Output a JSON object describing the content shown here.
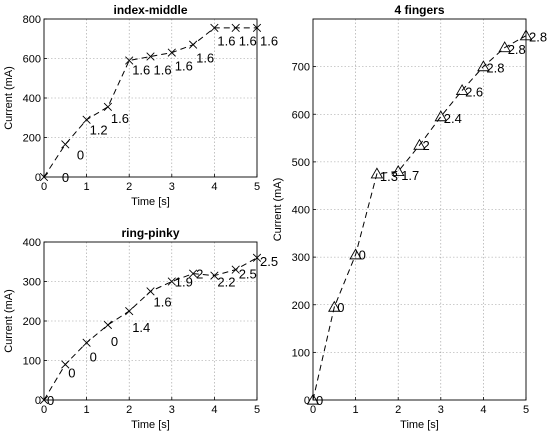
{
  "chart_data": [
    {
      "type": "line",
      "title": "index-middle",
      "xlabel": "Time [s]",
      "ylabel": "Current (mA)",
      "xlim": [
        0,
        5
      ],
      "ylim": [
        0,
        800
      ],
      "xticks": [
        "0",
        "1",
        "2",
        "3",
        "4",
        "5"
      ],
      "yticks": [
        "0",
        "200",
        "400",
        "600",
        "800"
      ],
      "grid": true,
      "marker": "x",
      "x": [
        0,
        0.5,
        1,
        1.5,
        2,
        2.5,
        3,
        3.5,
        4,
        4.5,
        5
      ],
      "y": [
        0,
        165,
        290,
        355,
        590,
        610,
        630,
        670,
        755,
        755,
        755
      ],
      "annotations": [
        {
          "text": "0",
          "x": 0.35,
          "y": 0
        },
        {
          "text": "0",
          "x": 0.7,
          "y": 115
        },
        {
          "text": "1.2",
          "x": 1.0,
          "y": 240
        },
        {
          "text": "1.6",
          "x": 1.5,
          "y": 300
        },
        {
          "text": "1.6",
          "x": 2.0,
          "y": 545
        },
        {
          "text": "1.6",
          "x": 2.5,
          "y": 545
        },
        {
          "text": "1.6",
          "x": 3.0,
          "y": 565
        },
        {
          "text": "1.6",
          "x": 3.5,
          "y": 605
        },
        {
          "text": "1.6",
          "x": 4.0,
          "y": 690
        },
        {
          "text": "1.6",
          "x": 4.5,
          "y": 690
        },
        {
          "text": "1.6",
          "x": 5.0,
          "y": 690
        }
      ]
    },
    {
      "type": "line",
      "title": "ring-pinky",
      "xlabel": "Time [s]",
      "ylabel": "Current (mA)",
      "xlim": [
        0,
        5
      ],
      "ylim": [
        0,
        400
      ],
      "xticks": [
        "0",
        "1",
        "2",
        "3",
        "4",
        "5"
      ],
      "yticks": [
        "0",
        "100",
        "200",
        "300",
        "400"
      ],
      "grid": true,
      "marker": "x",
      "x": [
        0,
        0.5,
        1,
        1.5,
        2,
        2.5,
        3,
        3.5,
        4,
        4.5,
        5
      ],
      "y": [
        0,
        90,
        145,
        190,
        225,
        275,
        300,
        320,
        315,
        330,
        360
      ],
      "annotations": [
        {
          "text": "0",
          "x": 0.0,
          "y": 0
        },
        {
          "text": "0",
          "x": 0.5,
          "y": 70
        },
        {
          "text": "0",
          "x": 1.0,
          "y": 110
        },
        {
          "text": "0",
          "x": 1.5,
          "y": 150
        },
        {
          "text": "1.4",
          "x": 2.0,
          "y": 185
        },
        {
          "text": "1.6",
          "x": 2.5,
          "y": 250
        },
        {
          "text": "1.9",
          "x": 3.0,
          "y": 300
        },
        {
          "text": "2",
          "x": 3.5,
          "y": 320
        },
        {
          "text": "2.2",
          "x": 4.0,
          "y": 300
        },
        {
          "text": "2.5",
          "x": 4.5,
          "y": 320
        },
        {
          "text": "2.5",
          "x": 5.0,
          "y": 352
        }
      ]
    },
    {
      "type": "line",
      "title": "4 fingers",
      "xlabel": "Time [s]",
      "ylabel": "Current (mA)",
      "xlim": [
        0,
        5
      ],
      "ylim": [
        0,
        800
      ],
      "xticks": [
        "0",
        "1",
        "2",
        "3",
        "4",
        "5"
      ],
      "yticks": [
        "0",
        "100",
        "200",
        "300",
        "400",
        "500",
        "600",
        "700"
      ],
      "grid": true,
      "marker": "triangle",
      "x": [
        0,
        0.5,
        1,
        1.5,
        2,
        2.5,
        3,
        3.5,
        4,
        4.5,
        5
      ],
      "y": [
        0,
        195,
        305,
        475,
        480,
        535,
        595,
        650,
        700,
        740,
        765
      ],
      "annotations": [
        {
          "text": "0",
          "x": 0.0,
          "y": 0
        },
        {
          "text": "0",
          "x": 0.5,
          "y": 195
        },
        {
          "text": "0",
          "x": 1.0,
          "y": 305
        },
        {
          "text": "1.3",
          "x": 1.5,
          "y": 470
        },
        {
          "text": "1.7",
          "x": 2.0,
          "y": 472
        },
        {
          "text": "2",
          "x": 2.5,
          "y": 535
        },
        {
          "text": "2.4",
          "x": 3.0,
          "y": 592
        },
        {
          "text": "2.6",
          "x": 3.5,
          "y": 648
        },
        {
          "text": "2.8",
          "x": 4.0,
          "y": 698
        },
        {
          "text": "2.8",
          "x": 4.5,
          "y": 737
        },
        {
          "text": "2.8",
          "x": 5.0,
          "y": 763
        }
      ]
    }
  ]
}
